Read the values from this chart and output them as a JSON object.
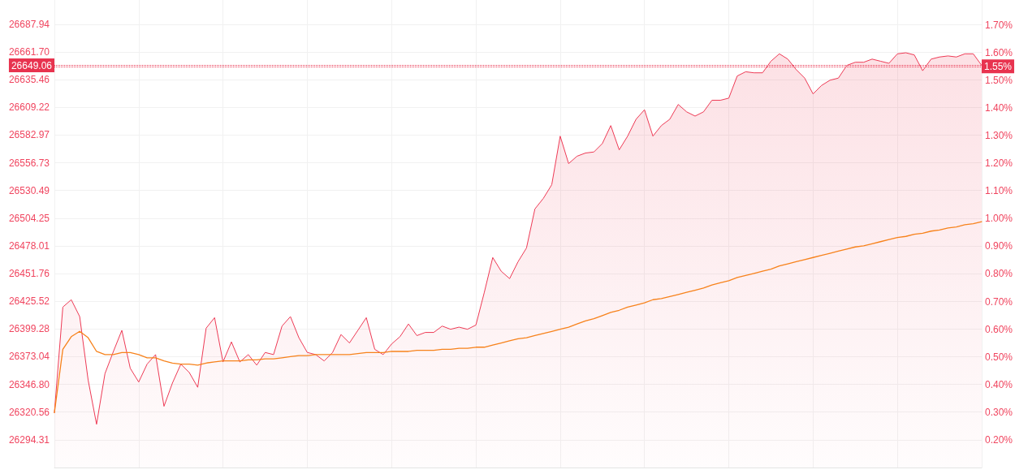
{
  "chart_data": {
    "type": "line",
    "categories": [
      null,
      null,
      null,
      null,
      null,
      null,
      null,
      null,
      null,
      null,
      null,
      null,
      null,
      null,
      null,
      null,
      null,
      null,
      null,
      null,
      null,
      null,
      null,
      null,
      null,
      null,
      null,
      null,
      null,
      null,
      null,
      null,
      null,
      null,
      null,
      null,
      null,
      null,
      null,
      null,
      null,
      null,
      null,
      null,
      null,
      null,
      null,
      null,
      null,
      null,
      null,
      null,
      null,
      null,
      null,
      null,
      null,
      null,
      null,
      null,
      null,
      null,
      null,
      null,
      null,
      null,
      null,
      null,
      null,
      null,
      null,
      null,
      null,
      null,
      null,
      null,
      null,
      null,
      null,
      null,
      null,
      null,
      null,
      null,
      null,
      null,
      null,
      null,
      null,
      null,
      null,
      null,
      null,
      null,
      null,
      null,
      null,
      null,
      null,
      null,
      null,
      null,
      null,
      null,
      null,
      null,
      null,
      null,
      null,
      null,
      null
    ],
    "series": [
      {
        "type": "area",
        "color": "#ee3a55",
        "values": [
          26320,
          26420,
          26427,
          26411,
          26351,
          26309,
          26357,
          26378,
          26398,
          26362,
          26349,
          26366,
          26375,
          26326,
          26348,
          26366,
          26358,
          26344,
          26400,
          26410,
          26368,
          26387,
          26368,
          26375,
          26365,
          26377,
          26375,
          26402,
          26411,
          26391,
          26377,
          26375,
          26369,
          26377,
          26394,
          26386,
          26398,
          26410,
          26380,
          26375,
          26385,
          26392,
          26404,
          26393,
          26396,
          26396,
          26402,
          26399,
          26401,
          26399,
          26403,
          26434,
          26467,
          26454,
          26447,
          26463,
          26476,
          26513,
          26523,
          26536,
          26582,
          26556,
          26563,
          26566,
          26567,
          26575,
          26592,
          26569,
          26582,
          26598,
          26607,
          26582,
          26592,
          26598,
          26612,
          26605,
          26601,
          26605,
          26616,
          26616,
          26618,
          26639,
          26643,
          26642,
          26642,
          26653,
          26660,
          26655,
          26645,
          26637,
          26622,
          26630,
          26635,
          26637,
          26649,
          26652,
          26652,
          26655,
          26653,
          26651,
          26660,
          26661,
          26659,
          26644,
          26655,
          26657,
          26658,
          26657,
          26660,
          26660,
          26649
        ]
      },
      {
        "type": "line",
        "color": "#f7821b",
        "values": [
          26320,
          26380,
          26392,
          26397,
          26391,
          26378,
          26375,
          26375,
          26377,
          26377,
          26375,
          26372,
          26372,
          26369,
          26367,
          26366,
          26366,
          26365,
          26367,
          26368,
          26369,
          26369,
          26369,
          26370,
          26370,
          26371,
          26371,
          26372,
          26373,
          26374,
          26374,
          26375,
          26375,
          26375,
          26375,
          26375,
          26376,
          26377,
          26377,
          26377,
          26378,
          26378,
          26378,
          26379,
          26379,
          26379,
          26380,
          26380,
          26381,
          26381,
          26382,
          26382,
          26384,
          26386,
          26388,
          26390,
          26391,
          26393,
          26395,
          26397,
          26399,
          26401,
          26404,
          26407,
          26409,
          26412,
          26415,
          26417,
          26420,
          26422,
          26424,
          26427,
          26428,
          26430,
          26432,
          26434,
          26436,
          26438,
          26441,
          26443,
          26445,
          26448,
          26450,
          26452,
          26454,
          26456,
          26459,
          26461,
          26463,
          26465,
          26467,
          26469,
          26471,
          26473,
          26475,
          26477,
          26478,
          26480,
          26482,
          26484,
          26486,
          26487,
          26489,
          26490,
          26492,
          26493,
          26495,
          26496,
          26498,
          26499,
          26501
        ]
      }
    ],
    "ylim": [
      26268,
      26711
    ],
    "yticks": [
      26294.31,
      26320.56,
      {
        "value": 26346.8,
        "label": "26346.80"
      },
      26373.04,
      26399.28,
      26425.52,
      26451.76,
      26478.01,
      26504.25,
      26530.49,
      26556.73,
      26582.97,
      26609.22,
      26635.46,
      {
        "value": 26661.7,
        "label": "26661.70"
      },
      26687.94
    ],
    "y2lim": [
      0.1,
      1.79
    ],
    "y2ticks": [
      {
        "value": 0.2,
        "label": "0.20%"
      },
      {
        "value": 0.3,
        "label": "0.30%"
      },
      {
        "value": 0.4,
        "label": "0.40%"
      },
      {
        "value": 0.5,
        "label": "0.50%"
      },
      {
        "value": 0.6,
        "label": "0.60%"
      },
      {
        "value": 0.7,
        "label": "0.70%"
      },
      {
        "value": 0.8,
        "label": "0.80%"
      },
      {
        "value": 0.9,
        "label": "0.90%"
      },
      {
        "value": 1.0,
        "label": "1.00%"
      },
      {
        "value": 1.1,
        "label": "1.10%"
      },
      {
        "value": 1.2,
        "label": "1.20%"
      },
      {
        "value": 1.3,
        "label": "1.30%"
      },
      {
        "value": 1.4,
        "label": "1.40%"
      },
      {
        "value": 1.5,
        "label": "1.50%"
      },
      {
        "value": 1.6,
        "label": "1.60%"
      },
      {
        "value": 1.7,
        "label": "1.70%"
      }
    ],
    "ref_lines": [
      {
        "axis": "y",
        "value": 26649.06,
        "label": "26649.06",
        "color": "#e8334f",
        "line_style": "dotted"
      },
      {
        "axis": "y2",
        "value": 1.55,
        "label": "1.55%",
        "color": "#e8334f",
        "line_style": "dotted"
      }
    ],
    "grid": true,
    "marker": "none"
  }
}
